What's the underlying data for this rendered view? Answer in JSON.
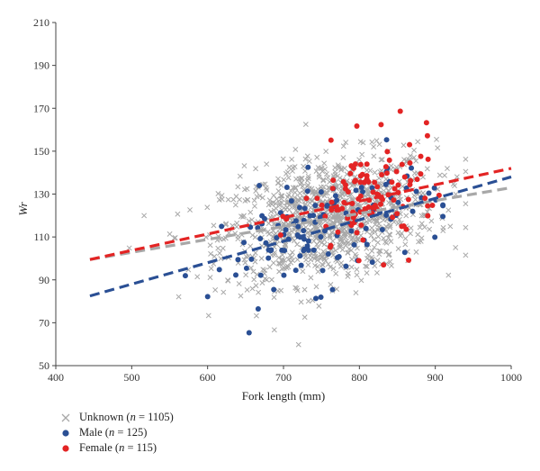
{
  "chart_data": {
    "type": "scatter",
    "xlabel": "Fork length (mm)",
    "ylabel": "Wr",
    "xlim": [
      400,
      1000
    ],
    "ylim": [
      50,
      210
    ],
    "xticks": [
      "400",
      "500",
      "600",
      "700",
      "800",
      "900",
      "1000"
    ],
    "yticks": [
      "50",
      "70",
      "90",
      "110",
      "130",
      "150",
      "170",
      "190",
      "210"
    ],
    "legend_position": "bottom-left",
    "series": [
      {
        "key": "unknown",
        "legend": "Unknown (",
        "n_label": "n",
        "n_value": " = 1105)",
        "marker": "x",
        "color": "#a8a8a8",
        "n_points": 1105,
        "trend": {
          "x": [
            445,
            1000
          ],
          "y": [
            99.5,
            133
          ],
          "color": "#a8a8a8"
        }
      },
      {
        "key": "male",
        "legend": "Male (",
        "n_label": "n",
        "n_value": " = 125)",
        "marker": "circle",
        "color": "#2a4f94",
        "n_points": 125,
        "trend": {
          "x": [
            445,
            1000
          ],
          "y": [
            82.5,
            138
          ],
          "color": "#2a4f94"
        }
      },
      {
        "key": "female",
        "legend": "Female (",
        "n_label": "n",
        "n_value": " = 115)",
        "marker": "circle",
        "color": "#e32424",
        "n_points": 115,
        "trend": {
          "x": [
            445,
            1000
          ],
          "y": [
            99.5,
            142
          ],
          "color": "#e32424"
        }
      }
    ]
  }
}
